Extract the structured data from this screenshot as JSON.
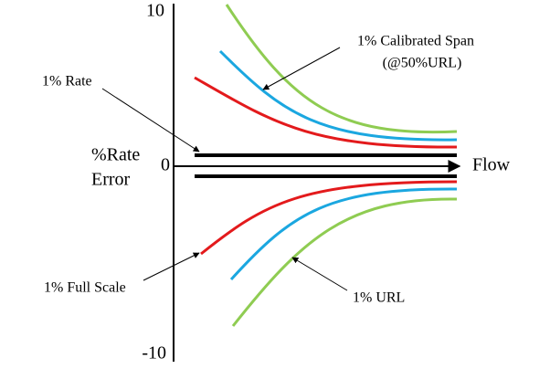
{
  "axes": {
    "y_ticks": [
      "10",
      "0",
      "-10"
    ],
    "y_label_lines": [
      "%Rate",
      "Error"
    ],
    "x_label": "Flow"
  },
  "annotations": [
    {
      "lines": [
        "1% Rate"
      ]
    },
    {
      "lines": [
        "1% Calibrated Span",
        "(@50%URL)"
      ]
    },
    {
      "lines": [
        "1% Full Scale"
      ]
    },
    {
      "lines": [
        "1% URL"
      ]
    }
  ]
}
